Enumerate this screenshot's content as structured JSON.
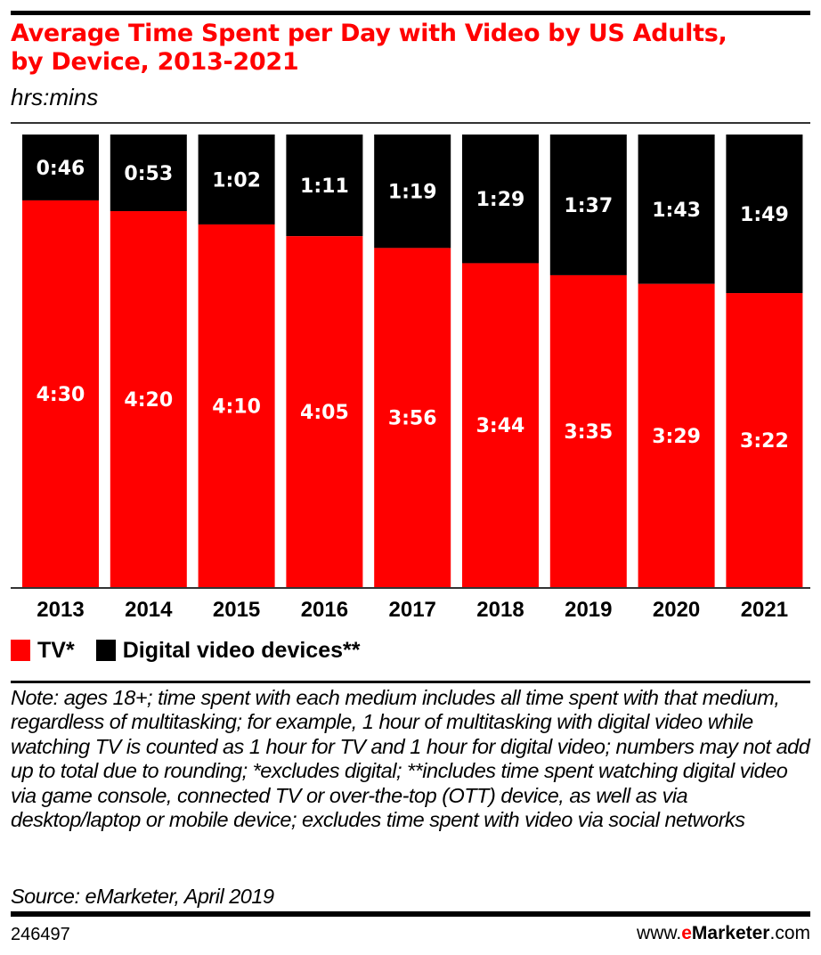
{
  "header": {
    "title_line1": "Average Time Spent per Day with Video by US Adults,",
    "title_line2": "by Device, 2013-2021",
    "subtitle": "hrs:mins"
  },
  "colors": {
    "tv": "#ff0000",
    "digital": "#000000",
    "title": "#ff0000"
  },
  "chart_data": {
    "type": "bar",
    "stacked": true,
    "normalized": "100% stacked",
    "title": "Average Time Spent per Day with Video by US Adults, by Device, 2013-2021",
    "unit": "hrs:mins",
    "xlabel": "",
    "ylabel": "",
    "grid": false,
    "legend_position": "bottom-left",
    "categories": [
      "2013",
      "2014",
      "2015",
      "2016",
      "2017",
      "2018",
      "2019",
      "2020",
      "2021"
    ],
    "series": [
      {
        "name": "TV*",
        "color": "#ff0000",
        "labels": [
          "4:30",
          "4:20",
          "4:10",
          "4:05",
          "3:56",
          "3:44",
          "3:35",
          "3:29",
          "3:22"
        ],
        "minutes": [
          270,
          260,
          250,
          245,
          236,
          224,
          215,
          209,
          202
        ]
      },
      {
        "name": "Digital video devices**",
        "color": "#000000",
        "labels": [
          "0:46",
          "0:53",
          "1:02",
          "1:11",
          "1:19",
          "1:29",
          "1:37",
          "1:43",
          "1:49"
        ],
        "minutes": [
          46,
          53,
          62,
          71,
          79,
          89,
          97,
          103,
          109
        ]
      }
    ]
  },
  "legend": [
    {
      "label": "TV*",
      "color": "#ff0000"
    },
    {
      "label": "Digital video devices**",
      "color": "#000000"
    }
  ],
  "footer": {
    "note": "Note: ages 18+; time spent with each medium includes all time spent with that medium, regardless of multitasking; for example, 1 hour of multitasking with digital video while watching TV is counted as 1 hour for TV and 1 hour for digital video; numbers may not add up to total due to rounding; *excludes digital; **includes time spent watching digital video via game console, connected TV or over-the-top (OTT) device, as well as via desktop/laptop or mobile device; excludes time spent with video via social networks",
    "source": "Source: eMarketer, April 2019",
    "chart_id": "246497",
    "brand_prefix": "www.",
    "brand_e": "e",
    "brand_name": "Marketer",
    "brand_suffix": ".com"
  }
}
